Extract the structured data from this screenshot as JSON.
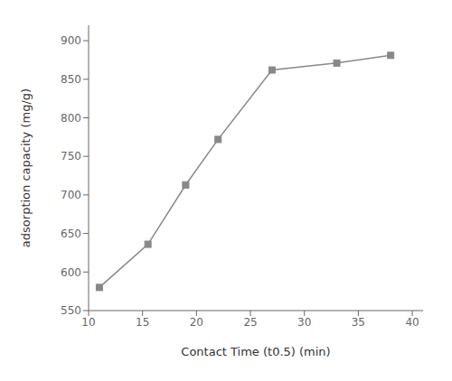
{
  "chart_data": {
    "type": "line",
    "x": [
      11,
      15.5,
      19,
      22,
      27,
      33,
      38
    ],
    "values": [
      580,
      636,
      713,
      772,
      862,
      871,
      881
    ],
    "xlim": [
      10,
      41
    ],
    "ylim": [
      550,
      920
    ],
    "xticks": [
      10,
      15,
      20,
      25,
      30,
      35,
      40
    ],
    "yticks": [
      550,
      600,
      650,
      700,
      750,
      800,
      850,
      900
    ],
    "xlabel": "Contact Time (t0.5) (min)",
    "ylabel": "adsorption capacity (mg/g)",
    "color": "#888888",
    "marker": "square",
    "grid": false
  }
}
